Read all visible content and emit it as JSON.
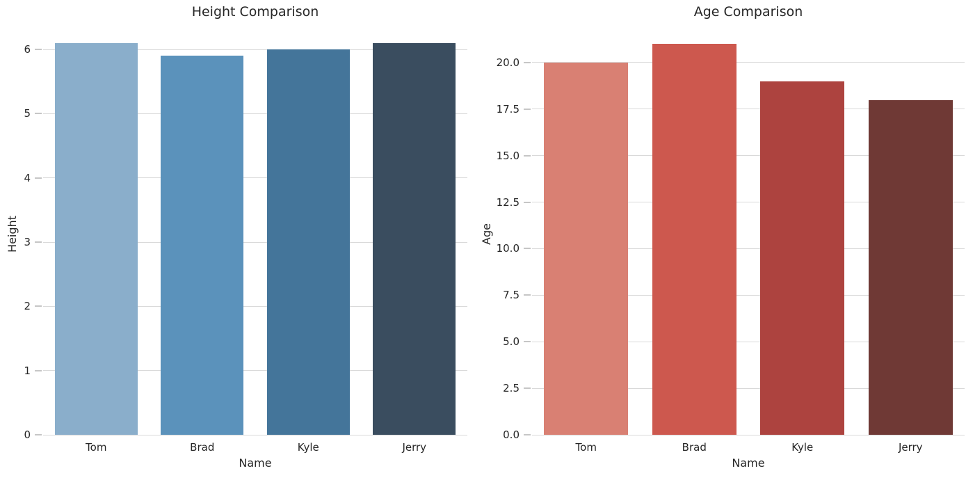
{
  "figure": {
    "background": "#ffffff",
    "text_color": "#262626",
    "grid_color": "#d9d9d9",
    "tick_color": "#c6c6c6"
  },
  "chart_data": [
    {
      "type": "bar",
      "title": "Height Comparison",
      "xlabel": "Name",
      "ylabel": "Height",
      "categories": [
        "Tom",
        "Brad",
        "Kyle",
        "Jerry"
      ],
      "values": [
        6.1,
        5.9,
        6.0,
        6.1
      ],
      "ylim": [
        0,
        6.25
      ],
      "ytick_values": [
        0,
        1,
        2,
        3,
        4,
        5,
        6
      ],
      "ytick_labels": [
        "0",
        "1",
        "2",
        "3",
        "4",
        "5",
        "6"
      ],
      "bar_colors": [
        "#8aaecb",
        "#5b92bb",
        "#44759a",
        "#3a4d5f"
      ],
      "grid": true,
      "legend": null
    },
    {
      "type": "bar",
      "title": "Age Comparison",
      "xlabel": "Name",
      "ylabel": "Age",
      "categories": [
        "Tom",
        "Brad",
        "Kyle",
        "Jerry"
      ],
      "values": [
        20,
        21,
        19,
        18
      ],
      "ylim": [
        0,
        21.57
      ],
      "ytick_values": [
        0,
        2.5,
        5,
        7.5,
        10,
        12.5,
        15,
        17.5,
        20
      ],
      "ytick_labels": [
        "0.0",
        "2.5",
        "5.0",
        "7.5",
        "10.0",
        "12.5",
        "15.0",
        "17.5",
        "20.0"
      ],
      "bar_colors": [
        "#d98073",
        "#cd584e",
        "#ad433f",
        "#6f3935"
      ],
      "grid": true,
      "legend": null
    }
  ]
}
